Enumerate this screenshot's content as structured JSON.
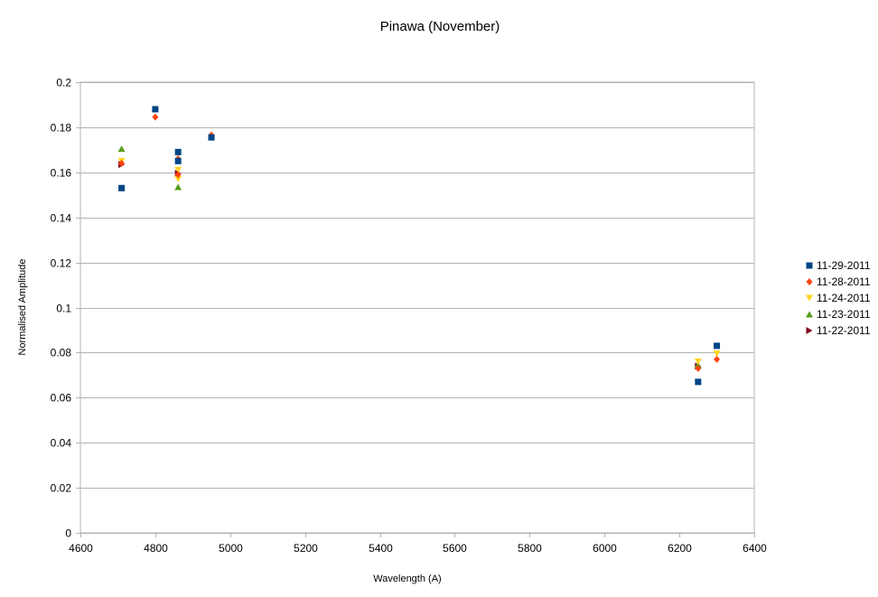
{
  "chart_data": {
    "type": "scatter",
    "title": "Pinawa (November)",
    "xlabel": "Wavelength (A)",
    "ylabel": "Normalised Amplitude",
    "xlim": [
      4600,
      6400
    ],
    "ylim": [
      0,
      0.2
    ],
    "xticks": [
      "4600",
      "4800",
      "5000",
      "5200",
      "5400",
      "5600",
      "5800",
      "6000",
      "6200",
      "6400"
    ],
    "yticks": [
      "0",
      "0.02",
      "0.04",
      "0.06",
      "0.08",
      "0.1",
      "0.12",
      "0.14",
      "0.16",
      "0.18",
      "0.2"
    ],
    "grid": "horizontal",
    "legend_position": "right",
    "series": [
      {
        "name": "11-29-2011",
        "marker": "square",
        "color": "#004586",
        "points": [
          [
            4710,
            0.153
          ],
          [
            4800,
            0.188
          ],
          [
            4861,
            0.165
          ],
          [
            4861,
            0.169
          ],
          [
            4950,
            0.1755
          ],
          [
            6250,
            0.067
          ],
          [
            6300,
            0.083
          ]
        ]
      },
      {
        "name": "11-28-2011",
        "marker": "diamond",
        "color": "#ff420e",
        "points": [
          [
            4710,
            0.164
          ],
          [
            4800,
            0.1845
          ],
          [
            4861,
            0.159
          ],
          [
            4861,
            0.166
          ],
          [
            4950,
            0.1765
          ],
          [
            6250,
            0.073
          ],
          [
            6300,
            0.077
          ]
        ]
      },
      {
        "name": "11-24-2011",
        "marker": "triangle-down",
        "color": "#ffd320",
        "points": [
          [
            4710,
            0.165
          ],
          [
            4861,
            0.157
          ],
          [
            4861,
            0.161
          ],
          [
            6250,
            0.076
          ],
          [
            6300,
            0.0795
          ]
        ]
      },
      {
        "name": "11-23-2011",
        "marker": "triangle-up",
        "color": "#579d1c",
        "points": [
          [
            4710,
            0.1705
          ],
          [
            4861,
            0.1535
          ],
          [
            6250,
            0.0745
          ]
        ]
      },
      {
        "name": "11-22-2011",
        "marker": "triangle-right",
        "color": "#7e0021",
        "points": [
          [
            4710,
            0.1635
          ],
          [
            4861,
            0.1595
          ],
          [
            6250,
            0.074
          ]
        ]
      }
    ]
  }
}
